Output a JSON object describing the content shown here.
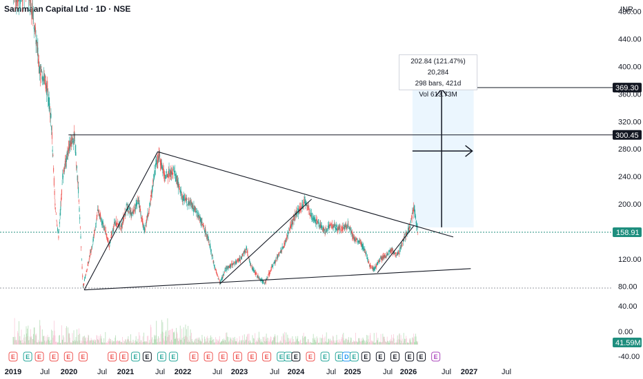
{
  "header": {
    "title": "Sammaan Capital Ltd · 1D · NSE",
    "currency": "INR"
  },
  "colors": {
    "up": "#26a69a",
    "down": "#ef5350",
    "accent_last": "#1e8e7e",
    "range_fill": "#e3f2fd"
  },
  "chart_data": {
    "type": "candlestick",
    "title": "Sammaan Capital Ltd · 1D · NSE",
    "y_axis": {
      "unit": "INR",
      "ylim": [
        50,
        520
      ],
      "ticks": [
        "480.00",
        "440.00",
        "400.00",
        "360.00",
        "320.00",
        "280.00",
        "240.00",
        "200.00",
        "160.00",
        "120.00",
        "80.00"
      ]
    },
    "volume_axis": {
      "unit": "M",
      "ticks": [
        "40.00",
        "0.00",
        "-40.00"
      ]
    },
    "x_axis": {
      "labels": [
        "2019",
        "Jul",
        "2020",
        "Jul",
        "2021",
        "Jul",
        "2022",
        "Jul",
        "2023",
        "Jul",
        "2024",
        "Jul",
        "2025",
        "Jul",
        "2026",
        "Jul",
        "2027",
        "Jul"
      ],
      "bold": [
        "2019",
        "2020",
        "2021",
        "2022",
        "2023",
        "2024",
        "2025",
        "2026",
        "2027"
      ]
    },
    "price_series": [
      {
        "t": 2019.0,
        "p": 510
      },
      {
        "t": 2019.1,
        "p": 500
      },
      {
        "t": 2019.25,
        "p": 520
      },
      {
        "t": 2019.35,
        "p": 470
      },
      {
        "t": 2019.45,
        "p": 400
      },
      {
        "t": 2019.55,
        "p": 380
      },
      {
        "t": 2019.65,
        "p": 330
      },
      {
        "t": 2019.72,
        "p": 200
      },
      {
        "t": 2019.78,
        "p": 150
      },
      {
        "t": 2019.85,
        "p": 240
      },
      {
        "t": 2019.95,
        "p": 280
      },
      {
        "t": 2020.05,
        "p": 300
      },
      {
        "t": 2020.12,
        "p": 220
      },
      {
        "t": 2020.2,
        "p": 80
      },
      {
        "t": 2020.28,
        "p": 110
      },
      {
        "t": 2020.38,
        "p": 150
      },
      {
        "t": 2020.45,
        "p": 190
      },
      {
        "t": 2020.55,
        "p": 170
      },
      {
        "t": 2020.65,
        "p": 140
      },
      {
        "t": 2020.75,
        "p": 175
      },
      {
        "t": 2020.85,
        "p": 165
      },
      {
        "t": 2020.95,
        "p": 195
      },
      {
        "t": 2021.05,
        "p": 185
      },
      {
        "t": 2021.15,
        "p": 205
      },
      {
        "t": 2021.25,
        "p": 160
      },
      {
        "t": 2021.35,
        "p": 200
      },
      {
        "t": 2021.45,
        "p": 260
      },
      {
        "t": 2021.5,
        "p": 270
      },
      {
        "t": 2021.6,
        "p": 240
      },
      {
        "t": 2021.75,
        "p": 250
      },
      {
        "t": 2021.9,
        "p": 210
      },
      {
        "t": 2022.05,
        "p": 200
      },
      {
        "t": 2022.2,
        "p": 180
      },
      {
        "t": 2022.35,
        "p": 150
      },
      {
        "t": 2022.45,
        "p": 110
      },
      {
        "t": 2022.55,
        "p": 85
      },
      {
        "t": 2022.65,
        "p": 105
      },
      {
        "t": 2022.8,
        "p": 115
      },
      {
        "t": 2022.9,
        "p": 120
      },
      {
        "t": 2023.0,
        "p": 135
      },
      {
        "t": 2023.08,
        "p": 110
      },
      {
        "t": 2023.15,
        "p": 100
      },
      {
        "t": 2023.25,
        "p": 90
      },
      {
        "t": 2023.32,
        "p": 85
      },
      {
        "t": 2023.45,
        "p": 110
      },
      {
        "t": 2023.55,
        "p": 125
      },
      {
        "t": 2023.65,
        "p": 140
      },
      {
        "t": 2023.75,
        "p": 165
      },
      {
        "t": 2023.85,
        "p": 185
      },
      {
        "t": 2023.95,
        "p": 195
      },
      {
        "t": 2024.0,
        "p": 205
      },
      {
        "t": 2024.05,
        "p": 195
      },
      {
        "t": 2024.15,
        "p": 180
      },
      {
        "t": 2024.25,
        "p": 170
      },
      {
        "t": 2024.35,
        "p": 160
      },
      {
        "t": 2024.45,
        "p": 170
      },
      {
        "t": 2024.55,
        "p": 165
      },
      {
        "t": 2024.65,
        "p": 165
      },
      {
        "t": 2024.75,
        "p": 170
      },
      {
        "t": 2024.85,
        "p": 150
      },
      {
        "t": 2024.95,
        "p": 145
      },
      {
        "t": 2025.05,
        "p": 130
      },
      {
        "t": 2025.12,
        "p": 110
      },
      {
        "t": 2025.2,
        "p": 105
      },
      {
        "t": 2025.3,
        "p": 120
      },
      {
        "t": 2025.4,
        "p": 125
      },
      {
        "t": 2025.5,
        "p": 135
      },
      {
        "t": 2025.55,
        "p": 125
      },
      {
        "t": 2025.62,
        "p": 130
      },
      {
        "t": 2025.7,
        "p": 150
      },
      {
        "t": 2025.8,
        "p": 165
      },
      {
        "t": 2025.85,
        "p": 185
      },
      {
        "t": 2025.88,
        "p": 195
      },
      {
        "t": 2025.92,
        "p": 170
      },
      {
        "t": 2025.95,
        "p": 158.91
      }
    ],
    "last_price": "158.91",
    "last_volume": "41.59M",
    "horizontal_levels": [
      {
        "value": 369.3,
        "label": "369.30"
      },
      {
        "value": 300.45,
        "label": "300.45"
      }
    ],
    "trendlines": [
      {
        "from": [
          2020.22,
          75
        ],
        "to": [
          2021.48,
          276
        ]
      },
      {
        "from": [
          2021.48,
          276
        ],
        "to": [
          2026.55,
          152
        ]
      },
      {
        "from": [
          2020.22,
          75
        ],
        "to": [
          2026.85,
          106
        ]
      },
      {
        "from": [
          2022.55,
          84
        ],
        "to": [
          2024.12,
          207
        ]
      },
      {
        "from": [
          2025.25,
          100
        ],
        "to": [
          2025.87,
          168
        ]
      }
    ],
    "measure": {
      "range_start": 2025.85,
      "range_end": 2026.9,
      "lower": 166,
      "upper": 369.3,
      "lines": [
        "202.84 (121.47%) 20,284",
        "298 bars, 421d",
        "Vol 613.73M"
      ]
    },
    "cross_arrow": {
      "x": 2026.35,
      "y": 277,
      "x_from": 2025.85,
      "x_to": 2026.9,
      "y_from": 166,
      "y_to": 369.3
    },
    "events": [
      {
        "t": 2019.0,
        "type": "E",
        "color": "#ef5350"
      },
      {
        "t": 2019.25,
        "type": "E",
        "color": "#26a69a"
      },
      {
        "t": 2019.45,
        "type": "E",
        "color": "#ef5350"
      },
      {
        "t": 2019.7,
        "type": "E",
        "color": "#ef5350"
      },
      {
        "t": 2019.95,
        "type": "E",
        "color": "#ef5350"
      },
      {
        "t": 2020.2,
        "type": "E",
        "color": "#ef5350"
      },
      {
        "t": 2020.7,
        "type": "E",
        "color": "#ef5350"
      },
      {
        "t": 2020.9,
        "type": "E",
        "color": "#ef5350"
      },
      {
        "t": 2021.1,
        "type": "E",
        "color": "#26a69a"
      },
      {
        "t": 2021.3,
        "type": "E",
        "color": "#131722"
      },
      {
        "t": 2021.55,
        "type": "E",
        "color": "#26a69a"
      },
      {
        "t": 2021.75,
        "type": "E",
        "color": "#26a69a"
      },
      {
        "t": 2022.1,
        "type": "E",
        "color": "#ef5350"
      },
      {
        "t": 2022.35,
        "type": "E",
        "color": "#ef5350"
      },
      {
        "t": 2022.6,
        "type": "E",
        "color": "#ef5350"
      },
      {
        "t": 2022.85,
        "type": "E",
        "color": "#ef5350"
      },
      {
        "t": 2023.1,
        "type": "E",
        "color": "#ef5350"
      },
      {
        "t": 2023.35,
        "type": "E",
        "color": "#ef5350"
      },
      {
        "t": 2023.6,
        "type": "E",
        "color": "#26a69a"
      },
      {
        "t": 2023.72,
        "type": "E",
        "color": "#26a69a"
      },
      {
        "t": 2023.85,
        "type": "E",
        "color": "#131722"
      },
      {
        "t": 2024.1,
        "type": "E",
        "color": "#ef5350"
      },
      {
        "t": 2024.35,
        "type": "E",
        "color": "#26a69a"
      },
      {
        "t": 2024.6,
        "type": "E",
        "color": "#26a69a"
      },
      {
        "t": 2024.72,
        "type": "D",
        "color": "#2196f3"
      },
      {
        "t": 2024.85,
        "type": "E",
        "color": "#26a69a"
      },
      {
        "t": 2025.05,
        "type": "E",
        "color": "#131722"
      },
      {
        "t": 2025.3,
        "type": "E",
        "color": "#131722"
      },
      {
        "t": 2025.55,
        "type": "E",
        "color": "#131722"
      },
      {
        "t": 2025.8,
        "type": "E",
        "color": "#131722"
      },
      {
        "t": 2026.0,
        "type": "E",
        "color": "#131722"
      },
      {
        "t": 2026.25,
        "type": "E",
        "color": "#ab47bc"
      }
    ]
  }
}
